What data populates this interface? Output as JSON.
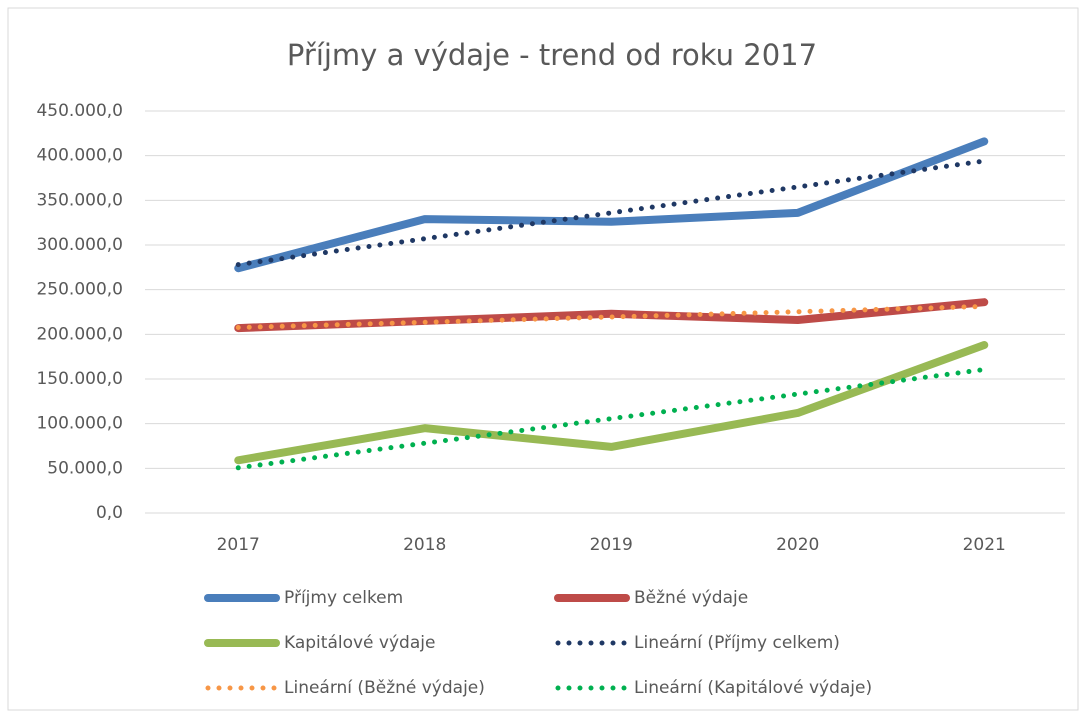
{
  "chart_data": {
    "type": "line",
    "title": "Příjmy a výdaje - trend od roku 2017",
    "categories": [
      "2017",
      "2018",
      "2019",
      "2020",
      "2021"
    ],
    "series": [
      {
        "name": "Příjmy celkem",
        "color": "#4a7ebb",
        "style": "solid",
        "values": [
          274000,
          329000,
          326000,
          336000,
          416000
        ]
      },
      {
        "name": "Běžné výdaje",
        "color": "#be4b48",
        "style": "solid",
        "values": [
          207000,
          215000,
          223000,
          216000,
          236000
        ]
      },
      {
        "name": "Kapitálové výdaje",
        "color": "#98b954",
        "style": "solid",
        "values": [
          59000,
          95000,
          74000,
          112000,
          188000
        ]
      },
      {
        "name": "Lineární (Příjmy celkem)",
        "color": "#1f3864",
        "style": "dotted",
        "values": [
          278000,
          307000,
          336000,
          365000,
          394000
        ]
      },
      {
        "name": "Lineární (Běžné výdaje)",
        "color": "#f79646",
        "style": "dotted",
        "values": [
          207600,
          213500,
          219400,
          225300,
          231200
        ]
      },
      {
        "name": "Lineární (Kapitálové výdaje)",
        "color": "#00b050",
        "style": "dotted",
        "values": [
          50600,
          78100,
          105600,
          133100,
          160600
        ]
      }
    ],
    "ylim": [
      0,
      450000
    ],
    "yticks": [
      {
        "value": 0,
        "label": "0,0"
      },
      {
        "value": 50000,
        "label": "50.000,0"
      },
      {
        "value": 100000,
        "label": "100.000,0"
      },
      {
        "value": 150000,
        "label": "150.000,0"
      },
      {
        "value": 200000,
        "label": "200.000,0"
      },
      {
        "value": 250000,
        "label": "250.000,0"
      },
      {
        "value": 300000,
        "label": "300.000,0"
      },
      {
        "value": 350000,
        "label": "350.000,0"
      },
      {
        "value": 400000,
        "label": "400.000,0"
      },
      {
        "value": 450000,
        "label": "450.000,0"
      }
    ],
    "grid": true,
    "legend": "bottom"
  }
}
